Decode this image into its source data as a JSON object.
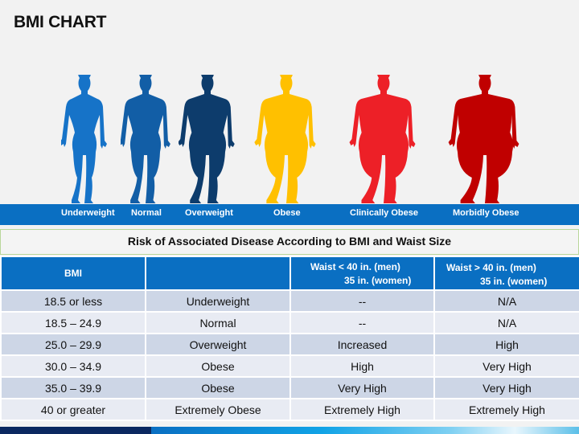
{
  "title": "BMI CHART",
  "figures": [
    {
      "label": "Underweight",
      "color": "#1673c8"
    },
    {
      "label": "Normal",
      "color": "#125ea6"
    },
    {
      "label": "Overweight",
      "color": "#0d3c6c"
    },
    {
      "label": "Obese",
      "color": "#ffc000"
    },
    {
      "label": "Clinically Obese",
      "color": "#ed2027"
    },
    {
      "label": "Morbidly Obese",
      "color": "#c00000"
    }
  ],
  "table": {
    "caption": "Risk of Associated Disease According to BMI and Waist Size",
    "headers": {
      "bmi": "BMI",
      "category": "",
      "waist_under": {
        "line1": "Waist < 40 in. (men)",
        "line2": "35 in. (women)"
      },
      "waist_over": {
        "line1": "Waist > 40 in. (men)",
        "line2": "35 in. (women)"
      }
    },
    "rows": [
      {
        "bmi": "18.5 or less",
        "category": "Underweight",
        "waist_under": "--",
        "waist_over": "N/A"
      },
      {
        "bmi": "18.5 – 24.9",
        "category": "Normal",
        "waist_under": "--",
        "waist_over": "N/A"
      },
      {
        "bmi": "25.0 – 29.9",
        "category": "Overweight",
        "waist_under": "Increased",
        "waist_over": "High"
      },
      {
        "bmi": "30.0 – 34.9",
        "category": "Obese",
        "waist_under": "High",
        "waist_over": "Very High"
      },
      {
        "bmi": "35.0 – 39.9",
        "category": "Obese",
        "waist_under": "Very High",
        "waist_over": "Very High"
      },
      {
        "bmi": "40 or greater",
        "category": "Extremely Obese",
        "waist_under": "Extremely High",
        "waist_over": "Extremely High"
      }
    ]
  },
  "colors": {
    "band": "#0a6fc2",
    "header": "#0a6fc2",
    "row_odd": "#cdd6e6",
    "row_even": "#e8ebf3"
  }
}
